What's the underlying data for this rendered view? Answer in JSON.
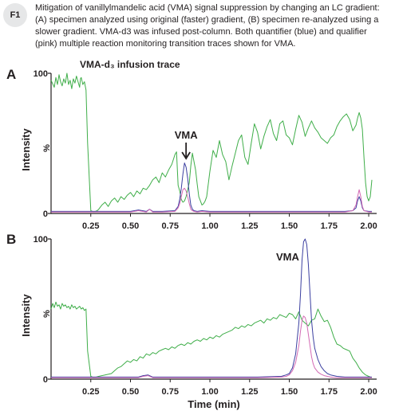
{
  "figure": {
    "badge": "F1",
    "caption": "Mitigation of vanillylmandelic acid (VMA) signal suppression by changing an LC gradient: (A) specimen analyzed using original (faster) gradient, (B) specimen re-analyzed using a slower gradient. VMA-d3 was infused post-column. Both quantifier (blue) and qualifier (pink) multiple reaction monitoring transition traces shown for VMA."
  },
  "colors": {
    "infusion": "#3fae49",
    "quantifier": "#3b3fa0",
    "qualifier": "#d36ab4",
    "axis": "#231f20"
  },
  "chart_data": [
    {
      "type": "line",
      "panel_label": "A",
      "ylabel": "Intensity",
      "yunit": "%",
      "ytick_top": "100",
      "ytick_bottom": "0",
      "xlim": [
        0.0,
        2.05
      ],
      "ylim": [
        0,
        100
      ],
      "x_ticks": [
        "0.25",
        "0.50",
        "0.75",
        "1.00",
        "1.25",
        "1.50",
        "1.75",
        "2.00"
      ],
      "annotations": [
        {
          "text": "VMA-d₃ infusion trace"
        },
        {
          "text": "VMA",
          "arrow": "down",
          "x": 0.85
        }
      ],
      "series": [
        {
          "key": "infusion",
          "x": [
            0.0,
            0.02,
            0.03,
            0.04,
            0.05,
            0.06,
            0.07,
            0.08,
            0.09,
            0.1,
            0.11,
            0.12,
            0.13,
            0.14,
            0.15,
            0.16,
            0.17,
            0.18,
            0.185,
            0.19,
            0.2,
            0.21,
            0.22,
            0.23,
            0.25,
            0.27,
            0.29,
            0.3,
            0.32,
            0.34,
            0.36,
            0.38,
            0.4,
            0.42,
            0.44,
            0.46,
            0.48,
            0.5,
            0.52,
            0.54,
            0.56,
            0.58,
            0.6,
            0.62,
            0.64,
            0.66,
            0.68,
            0.7,
            0.72,
            0.74,
            0.76,
            0.78,
            0.79,
            0.8,
            0.81,
            0.82,
            0.83,
            0.84,
            0.85,
            0.86,
            0.87,
            0.88,
            0.89,
            0.9,
            0.91,
            0.92,
            0.93,
            0.94,
            0.95,
            0.96,
            0.97,
            0.98,
            0.99,
            1.0,
            1.02,
            1.04,
            1.06,
            1.08,
            1.1,
            1.12,
            1.14,
            1.16,
            1.18,
            1.2,
            1.22,
            1.24,
            1.26,
            1.28,
            1.3,
            1.32,
            1.34,
            1.36,
            1.38,
            1.4,
            1.42,
            1.44,
            1.46,
            1.48,
            1.5,
            1.52,
            1.54,
            1.56,
            1.58,
            1.6,
            1.62,
            1.64,
            1.66,
            1.68,
            1.7,
            1.72,
            1.74,
            1.76,
            1.78,
            1.8,
            1.82,
            1.84,
            1.86,
            1.88,
            1.9,
            1.92,
            1.93,
            1.94,
            1.95,
            1.96,
            1.97,
            1.98,
            1.99,
            2.0,
            2.01,
            2.02
          ],
          "y": [
            95,
            90,
            97,
            92,
            99,
            94,
            91,
            96,
            93,
            100,
            92,
            95,
            89,
            96,
            93,
            98,
            94,
            90,
            96,
            97,
            92,
            94,
            88,
            50,
            2,
            1,
            2,
            3,
            6,
            8,
            5,
            9,
            11,
            8,
            12,
            10,
            13,
            15,
            12,
            16,
            14,
            18,
            17,
            20,
            24,
            26,
            22,
            29,
            26,
            31,
            35,
            42,
            44,
            20,
            16,
            10,
            8,
            9,
            12,
            17,
            22,
            34,
            43,
            37,
            31,
            21,
            12,
            9,
            6,
            7,
            9,
            12,
            21,
            30,
            45,
            40,
            52,
            42,
            37,
            24,
            34,
            43,
            52,
            56,
            40,
            35,
            50,
            64,
            58,
            46,
            55,
            62,
            67,
            57,
            52,
            64,
            66,
            56,
            54,
            49,
            60,
            70,
            65,
            55,
            61,
            66,
            61,
            58,
            54,
            52,
            50,
            54,
            56,
            62,
            66,
            69,
            71,
            67,
            59,
            63,
            68,
            72,
            68,
            60,
            40,
            22,
            12,
            9,
            12,
            24
          ]
        },
        {
          "key": "quantifier",
          "x": [
            0.0,
            0.4,
            0.5,
            0.55,
            0.6,
            0.62,
            0.64,
            0.7,
            0.78,
            0.8,
            0.81,
            0.82,
            0.83,
            0.84,
            0.85,
            0.86,
            0.87,
            0.88,
            0.89,
            0.9,
            0.92,
            0.95,
            1.0,
            1.3,
            1.6,
            1.85,
            1.9,
            1.92,
            1.93,
            1.94,
            1.95,
            1.96,
            1.97,
            2.0,
            2.02
          ],
          "y": [
            1.5,
            1.5,
            1.5,
            2.5,
            1.5,
            3,
            1.5,
            1.5,
            2,
            5,
            10,
            18,
            28,
            36,
            33,
            25,
            14,
            6,
            3,
            2,
            1.5,
            2,
            1.5,
            1.5,
            1.5,
            1.5,
            2,
            4,
            9,
            12,
            9,
            4,
            2,
            1.5,
            1.5
          ]
        },
        {
          "key": "qualifier",
          "x": [
            0.0,
            0.4,
            0.5,
            0.55,
            0.6,
            0.62,
            0.64,
            0.7,
            0.78,
            0.8,
            0.81,
            0.82,
            0.83,
            0.84,
            0.85,
            0.86,
            0.87,
            0.88,
            0.89,
            0.9,
            0.92,
            0.95,
            1.0,
            1.3,
            1.6,
            1.85,
            1.9,
            1.92,
            1.93,
            1.94,
            1.95,
            1.96,
            1.97,
            2.0,
            2.02
          ],
          "y": [
            1,
            1,
            1,
            2,
            1,
            3,
            1,
            1,
            1.5,
            4,
            7,
            12,
            17,
            18,
            16,
            12,
            7,
            3,
            2,
            1.5,
            1,
            1.5,
            1,
            1,
            1,
            1,
            2,
            6,
            12,
            17,
            12,
            5,
            2,
            1,
            1
          ]
        }
      ]
    },
    {
      "type": "line",
      "panel_label": "B",
      "ylabel": "Intensity",
      "yunit": "%",
      "ytick_top": "100",
      "ytick_bottom": "0",
      "xlim": [
        0.0,
        2.05
      ],
      "ylim": [
        0,
        100
      ],
      "x_ticks": [
        "0.25",
        "0.50",
        "0.75",
        "1.00",
        "1.25",
        "1.50",
        "1.75",
        "2.00"
      ],
      "xlabel": "Time (min)",
      "annotations": [
        {
          "text": "VMA",
          "x": 1.6
        }
      ],
      "series": [
        {
          "key": "infusion",
          "x": [
            0.0,
            0.01,
            0.02,
            0.03,
            0.04,
            0.05,
            0.06,
            0.07,
            0.08,
            0.09,
            0.1,
            0.11,
            0.12,
            0.13,
            0.14,
            0.15,
            0.16,
            0.17,
            0.18,
            0.19,
            0.2,
            0.21,
            0.22,
            0.23,
            0.25,
            0.27,
            0.3,
            0.34,
            0.38,
            0.4,
            0.42,
            0.44,
            0.46,
            0.48,
            0.5,
            0.52,
            0.54,
            0.56,
            0.58,
            0.6,
            0.62,
            0.64,
            0.66,
            0.68,
            0.7,
            0.72,
            0.74,
            0.76,
            0.78,
            0.8,
            0.82,
            0.84,
            0.86,
            0.88,
            0.9,
            0.92,
            0.94,
            0.96,
            0.98,
            1.0,
            1.02,
            1.04,
            1.06,
            1.08,
            1.1,
            1.12,
            1.14,
            1.16,
            1.18,
            1.2,
            1.22,
            1.24,
            1.26,
            1.28,
            1.3,
            1.32,
            1.34,
            1.36,
            1.38,
            1.4,
            1.42,
            1.44,
            1.46,
            1.48,
            1.5,
            1.52,
            1.54,
            1.56,
            1.58,
            1.6,
            1.62,
            1.64,
            1.66,
            1.68,
            1.7,
            1.72,
            1.74,
            1.76,
            1.78,
            1.8,
            1.82,
            1.84,
            1.86,
            1.88,
            1.9,
            1.92,
            1.94,
            1.96,
            1.98,
            2.0,
            2.02
          ],
          "y": [
            50,
            54,
            51,
            55,
            52,
            53,
            50,
            54,
            52,
            53,
            51,
            52,
            50,
            53,
            51,
            52,
            50,
            51,
            52,
            50,
            51,
            49,
            50,
            20,
            2,
            1,
            2,
            3,
            4,
            6,
            8,
            9,
            11,
            13,
            12,
            14,
            13,
            16,
            15,
            18,
            17,
            19,
            18,
            20,
            21,
            22,
            21,
            23,
            22,
            24,
            25,
            24,
            26,
            25,
            27,
            28,
            27,
            29,
            28,
            30,
            29,
            31,
            30,
            32,
            33,
            34,
            35,
            37,
            36,
            38,
            37,
            39,
            38,
            40,
            41,
            42,
            40,
            43,
            42,
            44,
            43,
            46,
            45,
            44,
            47,
            46,
            43,
            48,
            42,
            40,
            38,
            42,
            43,
            50,
            45,
            41,
            42,
            37,
            30,
            25,
            24,
            22,
            21,
            20,
            15,
            12,
            8,
            5,
            3,
            2,
            1
          ]
        },
        {
          "key": "quantifier",
          "x": [
            0.0,
            0.55,
            0.58,
            0.61,
            0.64,
            0.9,
            1.3,
            1.45,
            1.48,
            1.5,
            1.52,
            1.54,
            1.56,
            1.57,
            1.58,
            1.59,
            1.6,
            1.61,
            1.62,
            1.63,
            1.64,
            1.65,
            1.66,
            1.68,
            1.7,
            1.72,
            1.74,
            1.76,
            1.78,
            1.8,
            1.85,
            1.9,
            1.95,
            2.0,
            2.02
          ],
          "y": [
            1.5,
            1.5,
            2.5,
            3,
            1.5,
            1.5,
            1.5,
            2,
            3,
            4,
            8,
            18,
            40,
            60,
            85,
            98,
            100,
            96,
            82,
            62,
            42,
            30,
            22,
            14,
            9,
            6,
            4,
            3,
            2.5,
            2,
            1.5,
            1.5,
            1.5,
            1.5,
            1.5
          ]
        },
        {
          "key": "qualifier",
          "x": [
            0.0,
            0.55,
            0.58,
            0.61,
            0.64,
            0.9,
            1.3,
            1.45,
            1.48,
            1.5,
            1.52,
            1.54,
            1.56,
            1.57,
            1.58,
            1.59,
            1.6,
            1.61,
            1.62,
            1.63,
            1.64,
            1.65,
            1.66,
            1.68,
            1.7,
            1.72,
            1.74,
            1.76,
            1.78,
            1.8,
            1.85,
            1.9,
            1.95,
            2.0,
            2.02
          ],
          "y": [
            1,
            1,
            2,
            2.5,
            1,
            1,
            1,
            1.5,
            2,
            3,
            6,
            12,
            24,
            34,
            42,
            45,
            44,
            40,
            32,
            24,
            16,
            11,
            8,
            5,
            3.5,
            2.5,
            2,
            1.5,
            1.2,
            1,
            1,
            1,
            1,
            1,
            1
          ]
        }
      ]
    }
  ]
}
